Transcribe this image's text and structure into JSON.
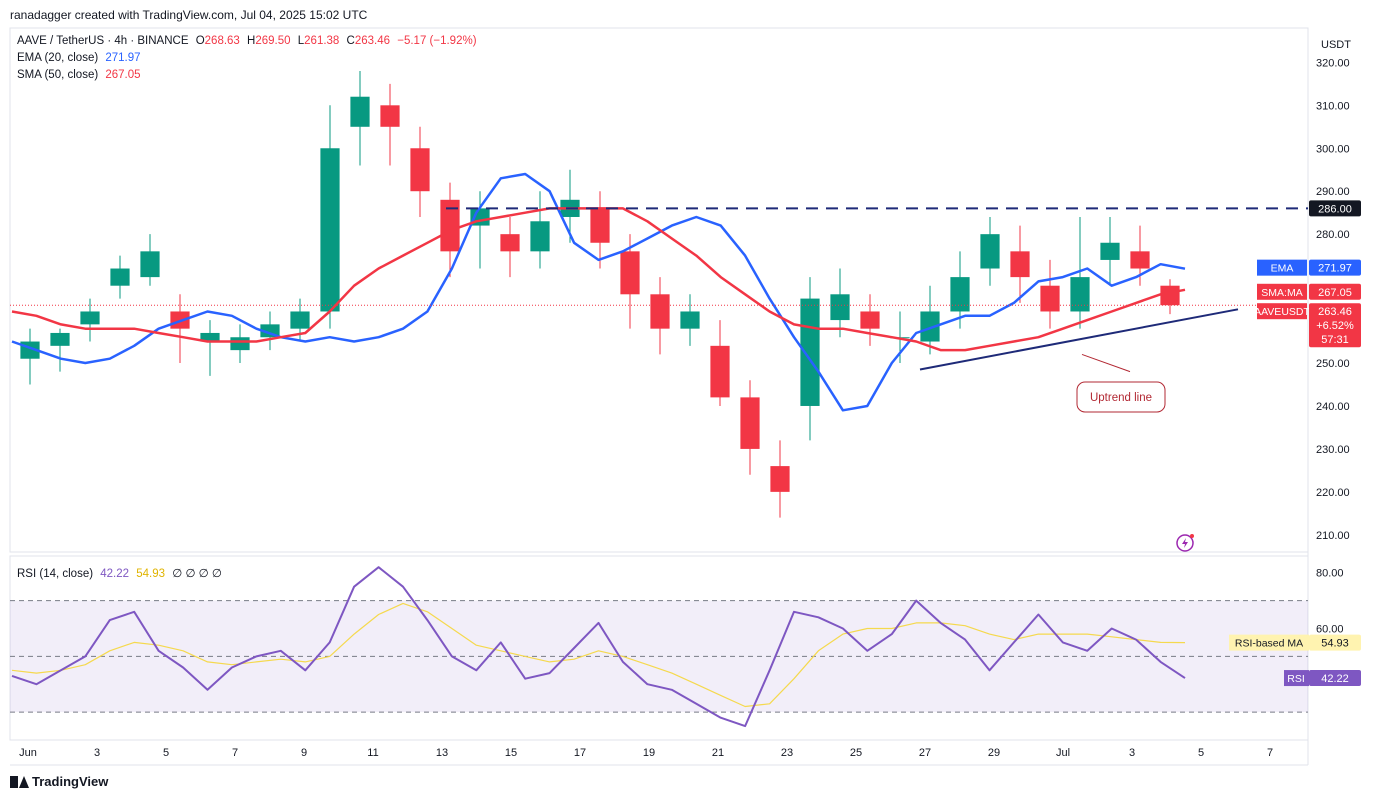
{
  "header": {
    "credit": "ranadagger created with TradingView.com, Jul 04, 2025 15:02 UTC"
  },
  "legend": {
    "symbol": "AAVE / TetherUS · 4h · BINANCE",
    "open_key": "O",
    "open": "268.63",
    "high_key": "H",
    "high": "269.50",
    "low_key": "L",
    "low": "261.38",
    "close_key": "C",
    "close": "263.46",
    "change": "−5.17 (−1.92%)",
    "ema_label": "EMA (20, close)",
    "ema_value": "271.97",
    "sma_label": "SMA (50, close)",
    "sma_value": "267.05",
    "rsi_label": "RSI (14, close)",
    "rsi_value": "42.22",
    "rsi_ma_value": "54.93",
    "rsi_extra": "∅ ∅ ∅ ∅"
  },
  "currency_label": "USDT",
  "brand": "TradingView",
  "annotation": "Uptrend line",
  "colors": {
    "up": "#089981",
    "down": "#f23645",
    "ema": "#2962ff",
    "sma": "#f23645",
    "rsi": "#7e57c2",
    "rsi_ma": "#f5d94e",
    "resistance": "#1e2a78",
    "trendline": "#1e2a78"
  },
  "chart_data": [
    {
      "type": "candlestick",
      "title": "AAVE / TetherUS · 4h · BINANCE",
      "ylabel": "USDT",
      "ylim": [
        206,
        328
      ],
      "y_ticks": [
        "320.00",
        "310.00",
        "300.00",
        "290.00",
        "280.00",
        "250.00",
        "240.00",
        "230.00",
        "220.00",
        "210.00"
      ],
      "x_ticks": [
        "Jun",
        "3",
        "5",
        "7",
        "9",
        "11",
        "13",
        "15",
        "17",
        "19",
        "21",
        "23",
        "25",
        "27",
        "29",
        "Jul",
        "3",
        "5",
        "7"
      ],
      "series": [
        {
          "name": "EMA",
          "values": [
            255,
            253,
            251,
            250,
            251,
            254,
            258,
            260,
            262,
            261,
            258,
            256,
            255,
            256,
            255,
            256,
            258,
            262,
            272,
            285,
            293,
            294,
            290,
            278,
            274,
            276,
            279,
            282,
            284,
            282,
            275,
            265,
            256,
            248,
            239,
            240,
            250,
            257,
            259,
            261,
            261,
            264,
            269,
            270,
            272,
            268,
            270,
            273,
            271.97
          ]
        },
        {
          "name": "SMA:MA",
          "values": [
            262,
            261,
            259,
            258,
            258,
            258,
            257,
            256,
            255,
            255,
            255,
            256,
            257,
            262,
            268,
            272,
            275,
            278,
            281,
            283,
            284,
            285,
            286,
            286,
            286,
            286,
            283,
            279,
            275,
            270,
            266,
            262,
            259,
            258,
            258,
            257,
            256,
            255,
            253,
            253,
            254,
            255,
            256,
            258,
            260,
            262,
            264,
            266,
            267.05
          ]
        }
      ],
      "ohlc_sampled": [
        [
          251,
          255,
          245,
          258
        ],
        [
          254,
          257,
          248,
          258
        ],
        [
          259,
          262,
          255,
          265
        ],
        [
          268,
          272,
          265,
          275
        ],
        [
          270,
          276,
          268,
          280
        ],
        [
          262,
          258,
          250,
          266
        ],
        [
          255,
          257,
          247,
          260
        ],
        [
          253,
          256,
          250,
          259
        ],
        [
          256,
          259,
          253,
          262
        ],
        [
          258,
          262,
          255,
          265
        ],
        [
          262,
          300,
          258,
          310
        ],
        [
          305,
          312,
          296,
          318
        ],
        [
          310,
          305,
          296,
          315
        ],
        [
          300,
          290,
          284,
          305
        ],
        [
          288,
          276,
          270,
          292
        ],
        [
          282,
          286,
          272,
          290
        ],
        [
          280,
          276,
          270,
          284
        ],
        [
          276,
          283,
          272,
          290
        ],
        [
          284,
          288,
          278,
          295
        ],
        [
          286,
          278,
          272,
          290
        ],
        [
          276,
          266,
          258,
          280
        ],
        [
          266,
          258,
          252,
          270
        ],
        [
          258,
          262,
          254,
          266
        ],
        [
          254,
          242,
          240,
          260
        ],
        [
          242,
          230,
          224,
          246
        ],
        [
          226,
          220,
          214,
          232
        ],
        [
          240,
          265,
          232,
          270
        ],
        [
          260,
          266,
          256,
          272
        ],
        [
          262,
          258,
          254,
          266
        ],
        [
          256,
          256,
          250,
          262
        ],
        [
          255,
          262,
          252,
          268
        ],
        [
          262,
          270,
          258,
          276
        ],
        [
          272,
          280,
          268,
          284
        ],
        [
          276,
          270,
          264,
          282
        ],
        [
          268,
          262,
          258,
          274
        ],
        [
          262,
          270,
          258,
          284
        ],
        [
          274,
          278,
          268,
          284
        ],
        [
          276,
          272,
          268,
          282
        ],
        [
          268,
          263.46,
          261.38,
          269.5
        ]
      ],
      "levels": [
        {
          "label": "286.00",
          "value": 286
        },
        {
          "label": "263.46",
          "value": 263.46
        }
      ],
      "price_tags": [
        {
          "name": "EMA",
          "value": "271.97"
        },
        {
          "name": "SMA:MA",
          "value": "267.05"
        },
        {
          "name": "AAVEUSDT",
          "value": "263.46",
          "change": "+6.52%",
          "timer": "57:31"
        }
      ],
      "annotations": [
        "Uptrend line"
      ]
    },
    {
      "type": "line",
      "title": "RSI (14, close)",
      "ylim": [
        20,
        86
      ],
      "y_ticks": [
        "80.00",
        "60.00"
      ],
      "bands": {
        "upper": 70,
        "middle": 50,
        "lower": 30
      },
      "series": [
        {
          "name": "RSI",
          "values": [
            43,
            40,
            45,
            50,
            63,
            66,
            52,
            46,
            38,
            46,
            50,
            52,
            45,
            55,
            75,
            82,
            75,
            63,
            50,
            45,
            55,
            42,
            44,
            53,
            62,
            48,
            40,
            38,
            33,
            28,
            25,
            45,
            66,
            64,
            60,
            52,
            58,
            70,
            62,
            56,
            45,
            55,
            65,
            55,
            52,
            60,
            56,
            48,
            42.22
          ]
        },
        {
          "name": "RSI-based MA",
          "values": [
            45,
            44,
            45,
            47,
            52,
            55,
            54,
            52,
            48,
            47,
            48,
            49,
            48,
            50,
            58,
            65,
            69,
            66,
            60,
            54,
            52,
            50,
            48,
            49,
            52,
            50,
            47,
            44,
            40,
            36,
            32,
            33,
            42,
            52,
            58,
            60,
            60,
            62,
            62,
            61,
            58,
            56,
            58,
            58,
            58,
            57,
            56,
            55,
            54.93
          ]
        }
      ],
      "price_tags": [
        {
          "name": "RSI-based MA",
          "value": "54.93"
        },
        {
          "name": "RSI",
          "value": "42.22"
        }
      ]
    }
  ]
}
